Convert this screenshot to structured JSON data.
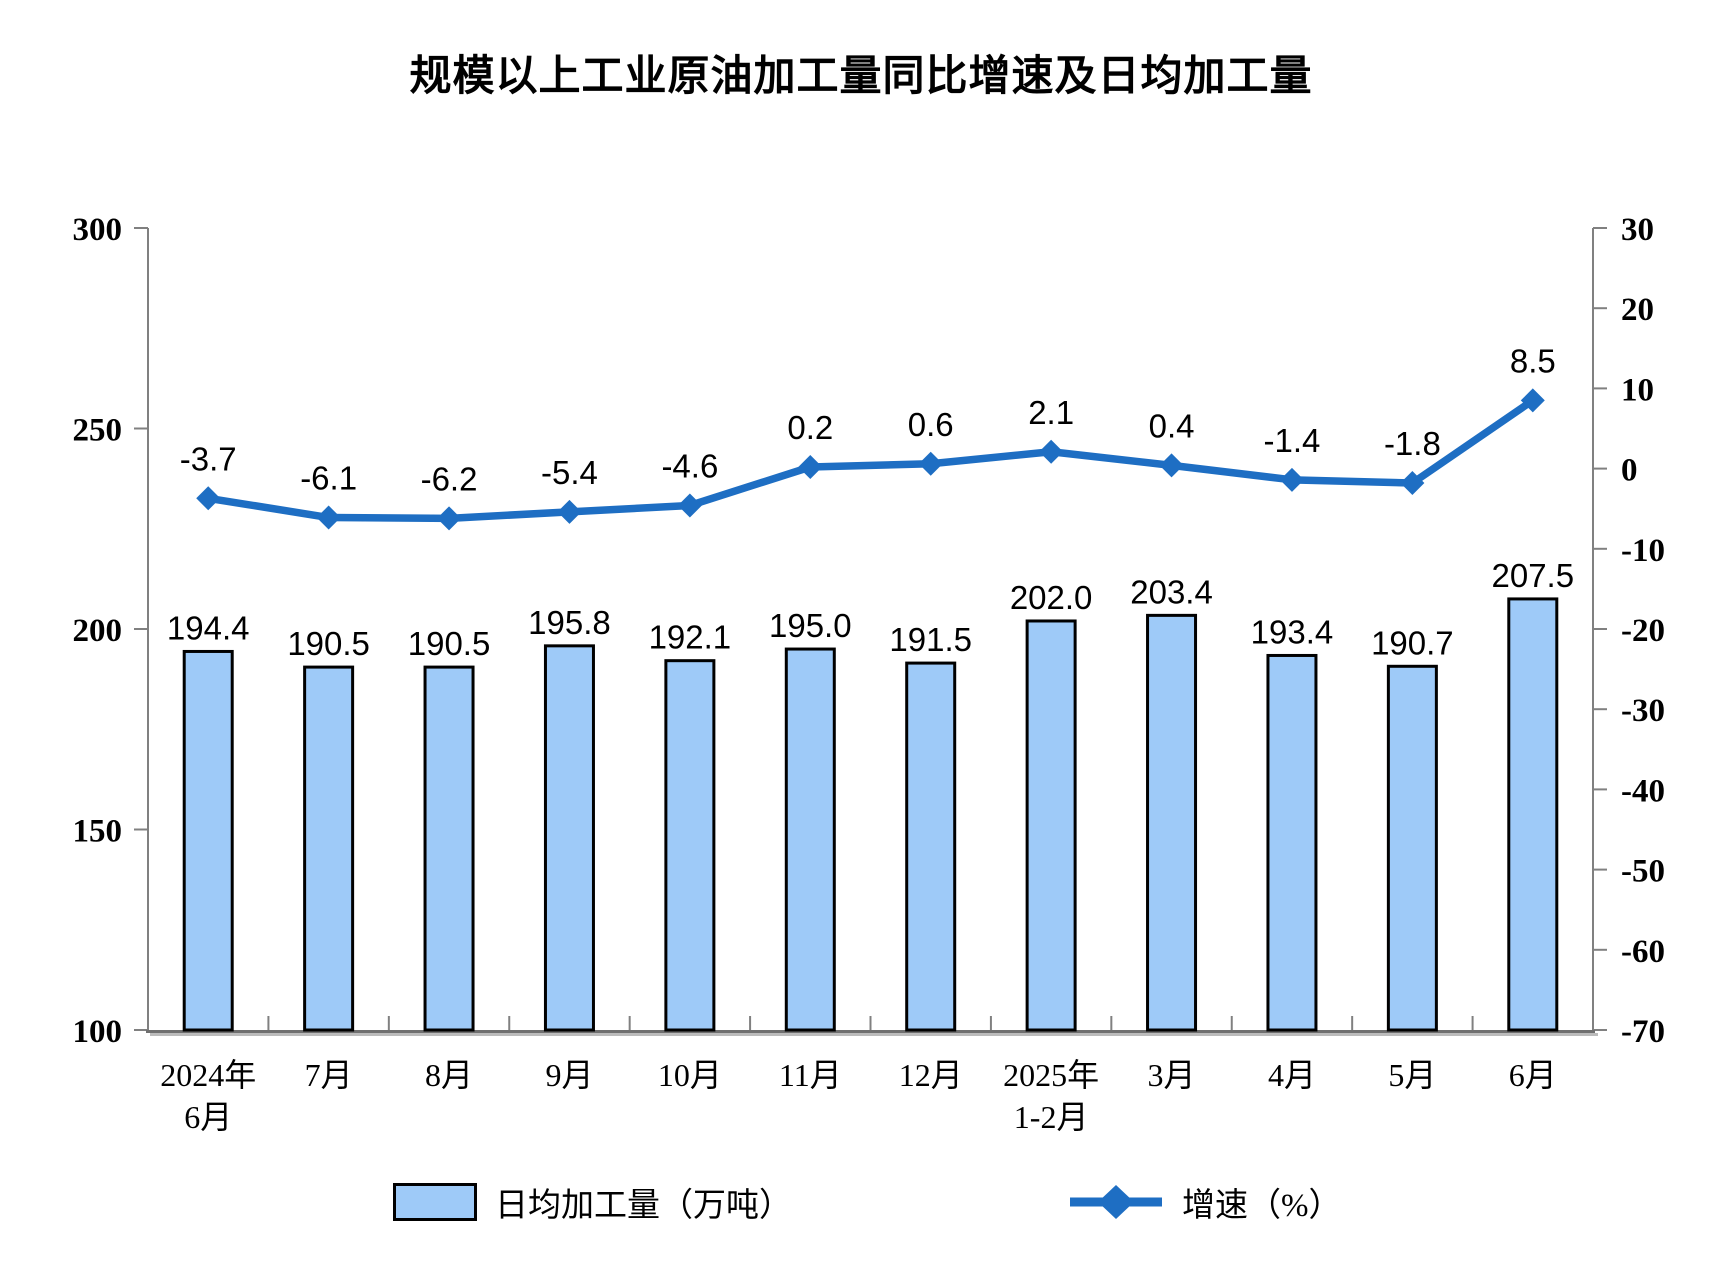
{
  "title": "规模以上工业原油加工量同比增速及日均加工量",
  "legend": {
    "bar_label": "日均加工量（万吨）",
    "line_label": "增速（%）"
  },
  "colors": {
    "bar_fill": "#9ECAF8",
    "bar_border": "#000000",
    "line": "#1E6EC3",
    "axis": "#808080",
    "axis_shadow": "#BBBBBB",
    "text": "#000000"
  },
  "chart_data": {
    "type": "combo-bar-line",
    "title": "规模以上工业原油加工量同比增速及日均加工量",
    "categories": [
      "2024年\n6月",
      "7月",
      "8月",
      "9月",
      "10月",
      "11月",
      "12月",
      "2025年\n1-2月",
      "3月",
      "4月",
      "5月",
      "6月"
    ],
    "series": [
      {
        "name": "日均加工量（万吨）",
        "type": "bar",
        "axis": "left",
        "values": [
          194.4,
          190.5,
          190.5,
          195.8,
          192.1,
          195.0,
          191.5,
          202.0,
          203.4,
          193.4,
          190.7,
          207.5
        ]
      },
      {
        "name": "增速（%）",
        "type": "line",
        "axis": "right",
        "values": [
          -3.7,
          -6.1,
          -6.2,
          -5.4,
          -4.6,
          0.2,
          0.6,
          2.1,
          0.4,
          -1.4,
          -1.8,
          8.5
        ]
      }
    ],
    "left_axis": {
      "min": 100,
      "max": 300,
      "ticks": [
        300,
        250,
        200,
        150,
        100
      ]
    },
    "right_axis": {
      "min": -70,
      "max": 30,
      "ticks": [
        30,
        20,
        10,
        0,
        -10,
        -20,
        -30,
        -40,
        -50,
        -60,
        -70
      ]
    },
    "grid": false,
    "data_labels": true,
    "legend_position": "bottom"
  }
}
